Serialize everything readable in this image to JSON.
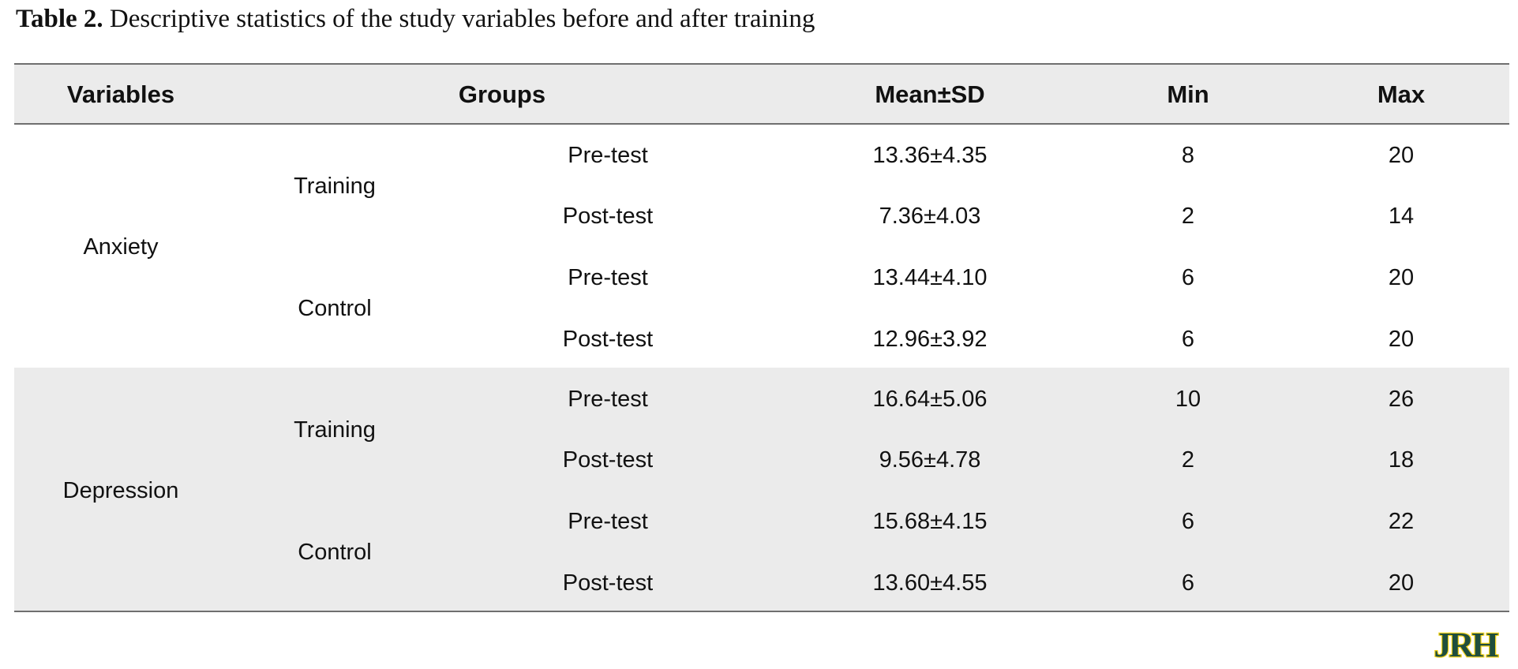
{
  "caption": {
    "label": "Table 2.",
    "text": " Descriptive statistics of the study variables before and after training"
  },
  "table": {
    "headers": {
      "variables": "Variables",
      "groups": "Groups",
      "mean_sd": "Mean±SD",
      "min": "Min",
      "max": "Max"
    },
    "sections": [
      {
        "variable": "Anxiety",
        "groups": [
          {
            "group": "Training",
            "rows": [
              {
                "phase": "Pre-test",
                "mean_sd": "13.36±4.35",
                "min": "8",
                "max": "20"
              },
              {
                "phase": "Post-test",
                "mean_sd": "7.36±4.03",
                "min": "2",
                "max": "14"
              }
            ]
          },
          {
            "group": "Control",
            "rows": [
              {
                "phase": "Pre-test",
                "mean_sd": "13.44±4.10",
                "min": "6",
                "max": "20"
              },
              {
                "phase": "Post-test",
                "mean_sd": "12.96±3.92",
                "min": "6",
                "max": "20"
              }
            ]
          }
        ]
      },
      {
        "variable": "Depression",
        "groups": [
          {
            "group": "Training",
            "rows": [
              {
                "phase": "Pre-test",
                "mean_sd": "16.64±5.06",
                "min": "10",
                "max": "26"
              },
              {
                "phase": "Post-test",
                "mean_sd": "9.56±4.78",
                "min": "2",
                "max": "18"
              }
            ]
          },
          {
            "group": "Control",
            "rows": [
              {
                "phase": "Pre-test",
                "mean_sd": "15.68±4.15",
                "min": "6",
                "max": "22"
              },
              {
                "phase": "Post-test",
                "mean_sd": "13.60±4.55",
                "min": "6",
                "max": "20"
              }
            ]
          }
        ]
      }
    ]
  },
  "logo": {
    "text": "JRH",
    "fill_color": "#1f4e3d",
    "accent_color": "#f2d21b"
  }
}
